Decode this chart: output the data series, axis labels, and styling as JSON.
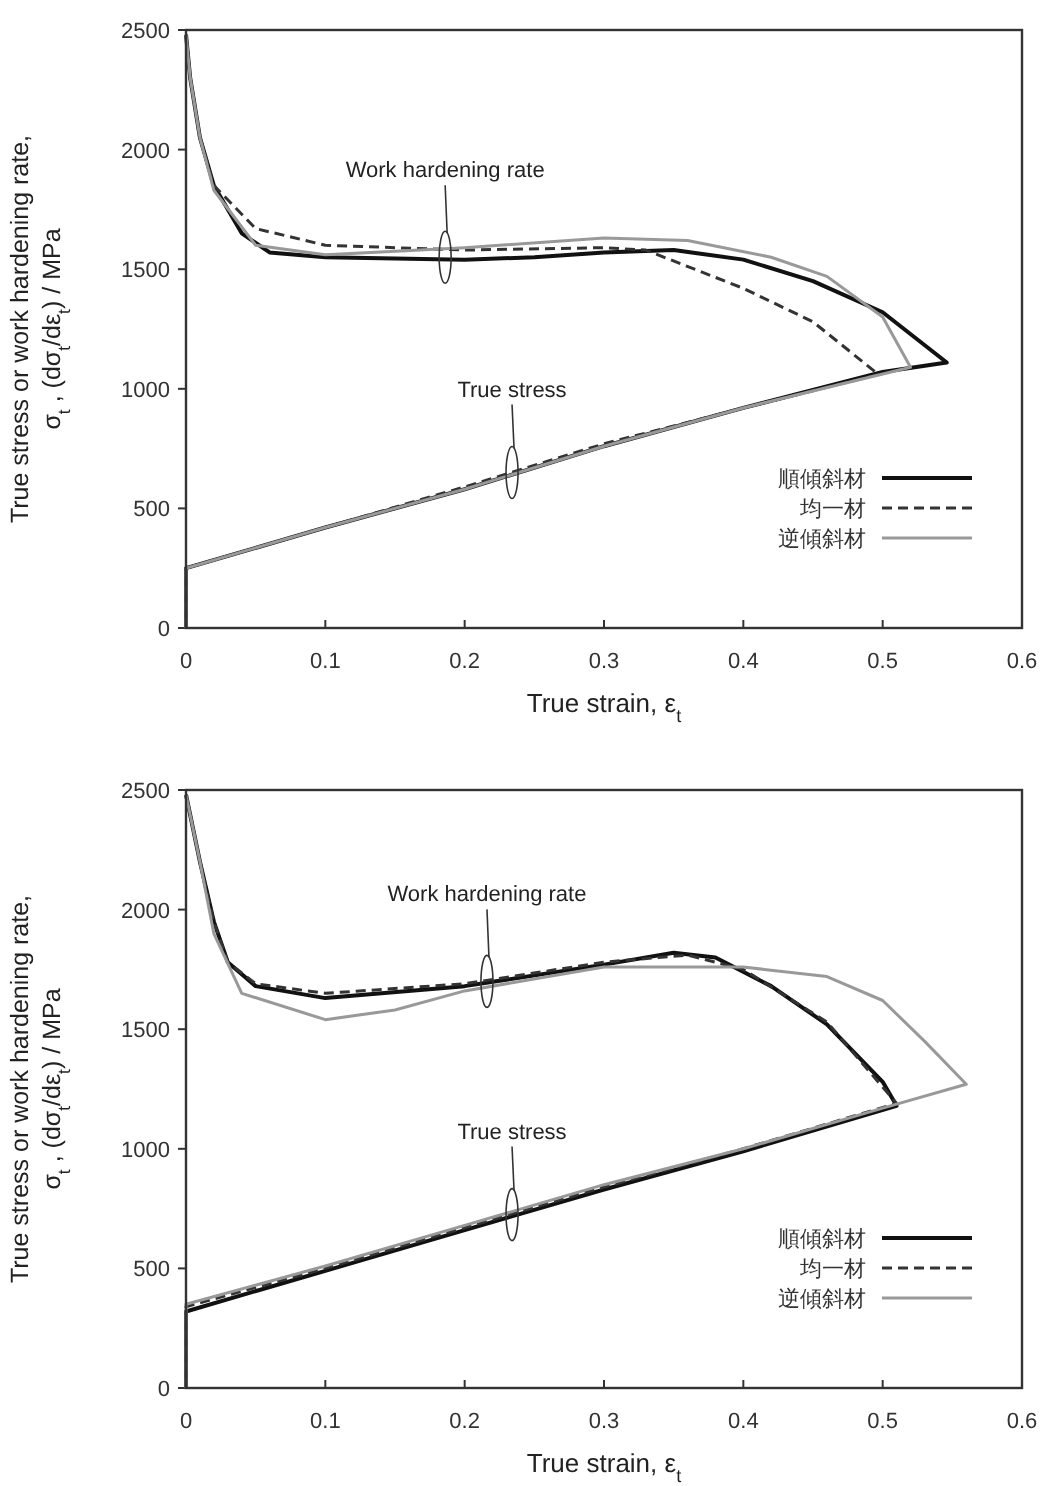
{
  "chart_data": [
    {
      "type": "line",
      "xlabel": "True strain, ε$_{t}$",
      "ylabel": "True stress or work hardening rate,\nσ$_{t}$ , (dσ$_{t}$/dε$_{t}$) / MPa",
      "xlim": [
        0,
        0.6
      ],
      "ylim": [
        0,
        2500
      ],
      "xticks": [
        0,
        0.1,
        0.2,
        0.3,
        0.4,
        0.5,
        0.6
      ],
      "yticks": [
        0,
        500,
        1000,
        1500,
        2000,
        2500
      ],
      "grid": false,
      "legend": "bottom right",
      "annotations": [
        "Work hardening rate",
        "True stress"
      ],
      "series": [
        {
          "name": "順傾斜材",
          "color": "#111111",
          "line_style": "solid",
          "x": [
            0,
            0,
            0.1,
            0.2,
            0.3,
            0.4,
            0.5,
            0.546,
            0.5,
            0.45,
            0.4,
            0.35,
            0.3,
            0.25,
            0.2,
            0.1,
            0.06,
            0.04,
            0.02,
            0.01,
            0.003,
            0
          ],
          "values": [
            0,
            250,
            420,
            580,
            760,
            920,
            1070,
            1110,
            1320,
            1450,
            1540,
            1580,
            1570,
            1550,
            1540,
            1550,
            1570,
            1650,
            1850,
            2050,
            2300,
            2480
          ]
        },
        {
          "name": "均一材",
          "color": "#333333",
          "line_style": "dashed",
          "x": [
            0,
            0,
            0.1,
            0.2,
            0.3,
            0.4,
            0.497,
            0.45,
            0.4,
            0.33,
            0.3,
            0.2,
            0.1,
            0.05,
            0.02,
            0.01,
            0.003,
            0
          ],
          "values": [
            0,
            250,
            420,
            590,
            770,
            920,
            1060,
            1280,
            1420,
            1580,
            1590,
            1580,
            1600,
            1670,
            1850,
            2050,
            2300,
            2480
          ]
        },
        {
          "name": "逆傾斜材",
          "color": "#999999",
          "line_style": "solid",
          "x": [
            0,
            0,
            0.1,
            0.2,
            0.3,
            0.4,
            0.52,
            0.5,
            0.46,
            0.42,
            0.36,
            0.3,
            0.2,
            0.1,
            0.05,
            0.02,
            0.01,
            0.003,
            0
          ],
          "values": [
            0,
            250,
            420,
            580,
            760,
            920,
            1090,
            1300,
            1470,
            1550,
            1620,
            1630,
            1590,
            1560,
            1600,
            1830,
            2050,
            2300,
            2480
          ]
        }
      ]
    },
    {
      "type": "line",
      "xlabel": "True strain, ε$_{t}$",
      "ylabel": "True stress or work hardening rate,\nσ$_{t}$ , (dσ$_{t}$/dε$_{t}$) / MPa",
      "xlim": [
        0,
        0.6
      ],
      "ylim": [
        0,
        2500
      ],
      "xticks": [
        0,
        0.1,
        0.2,
        0.3,
        0.4,
        0.5,
        0.6
      ],
      "yticks": [
        0,
        500,
        1000,
        1500,
        2000,
        2500
      ],
      "grid": false,
      "legend": "bottom right",
      "annotations": [
        "Work hardening rate",
        "True stress"
      ],
      "series": [
        {
          "name": "順傾斜材",
          "color": "#111111",
          "line_style": "solid",
          "x": [
            0,
            0,
            0.1,
            0.2,
            0.3,
            0.4,
            0.51,
            0.5,
            0.46,
            0.42,
            0.38,
            0.35,
            0.3,
            0.2,
            0.1,
            0.05,
            0.03,
            0.02,
            0.01,
            0
          ],
          "values": [
            0,
            320,
            490,
            660,
            830,
            990,
            1180,
            1280,
            1520,
            1680,
            1800,
            1820,
            1770,
            1680,
            1630,
            1680,
            1780,
            1950,
            2200,
            2480
          ]
        },
        {
          "name": "均一材",
          "color": "#333333",
          "line_style": "dashed",
          "x": [
            0,
            0,
            0.1,
            0.2,
            0.3,
            0.4,
            0.51,
            0.46,
            0.4,
            0.36,
            0.3,
            0.2,
            0.1,
            0.05,
            0.03,
            0.02,
            0.01,
            0
          ],
          "values": [
            0,
            340,
            500,
            670,
            840,
            1000,
            1190,
            1530,
            1750,
            1810,
            1780,
            1690,
            1650,
            1690,
            1780,
            1950,
            2200,
            2480
          ]
        },
        {
          "name": "逆傾斜材",
          "color": "#999999",
          "line_style": "solid",
          "x": [
            0,
            0,
            0.1,
            0.2,
            0.3,
            0.4,
            0.5,
            0.56,
            0.53,
            0.5,
            0.46,
            0.4,
            0.3,
            0.2,
            0.15,
            0.1,
            0.04,
            0.02,
            0.01,
            0
          ],
          "values": [
            0,
            350,
            510,
            680,
            850,
            1000,
            1170,
            1270,
            1450,
            1620,
            1720,
            1760,
            1760,
            1660,
            1580,
            1540,
            1650,
            1900,
            2200,
            2480
          ]
        }
      ]
    }
  ]
}
